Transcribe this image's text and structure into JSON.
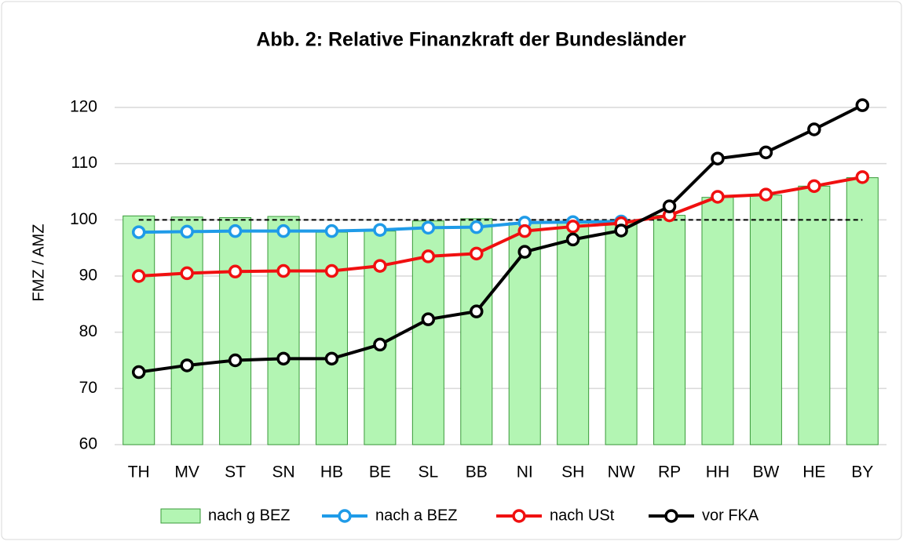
{
  "chart_data": {
    "type": "bar_line",
    "title": "Abb. 2: Relative Finanzkraft der Bundesländer",
    "ylabel": "FMZ / AMZ",
    "categories": [
      "TH",
      "MV",
      "ST",
      "SN",
      "HB",
      "BE",
      "SL",
      "BB",
      "NI",
      "SH",
      "NW",
      "RP",
      "HH",
      "BW",
      "HE",
      "BY"
    ],
    "series": [
      {
        "name": "nach g BEZ",
        "type": "bar",
        "color": "#b3f5b3",
        "edge": "#3a9a3a",
        "values": [
          100.7,
          100.5,
          100.4,
          100.6,
          97.8,
          98.0,
          99.8,
          100.2,
          99.5,
          99.6,
          99.7,
          100.8,
          104.0,
          104.4,
          106.0,
          107.5
        ]
      },
      {
        "name": "nach a BEZ",
        "type": "line",
        "color": "#1f9be8",
        "values": [
          97.8,
          97.9,
          98.0,
          98.0,
          98.0,
          98.2,
          98.6,
          98.7,
          99.5,
          99.6,
          99.7,
          null,
          null,
          null,
          null,
          null
        ]
      },
      {
        "name": "nach USt",
        "type": "line",
        "color": "#f01010",
        "values": [
          90.0,
          90.5,
          90.8,
          90.9,
          90.9,
          91.8,
          93.5,
          94.0,
          98.0,
          98.8,
          99.4,
          100.8,
          104.1,
          104.5,
          106.0,
          107.6
        ]
      },
      {
        "name": "vor FKA",
        "type": "line",
        "color": "#000000",
        "values": [
          72.9,
          74.1,
          75.0,
          75.3,
          75.3,
          77.8,
          82.3,
          83.7,
          94.3,
          96.5,
          98.1,
          102.4,
          110.9,
          112.0,
          116.1,
          120.4
        ]
      }
    ],
    "reference_line": 100,
    "ylim": [
      60,
      120
    ],
    "yticks": [
      60,
      70,
      80,
      90,
      100,
      110,
      120
    ],
    "grid": true,
    "legend": "bottom"
  }
}
